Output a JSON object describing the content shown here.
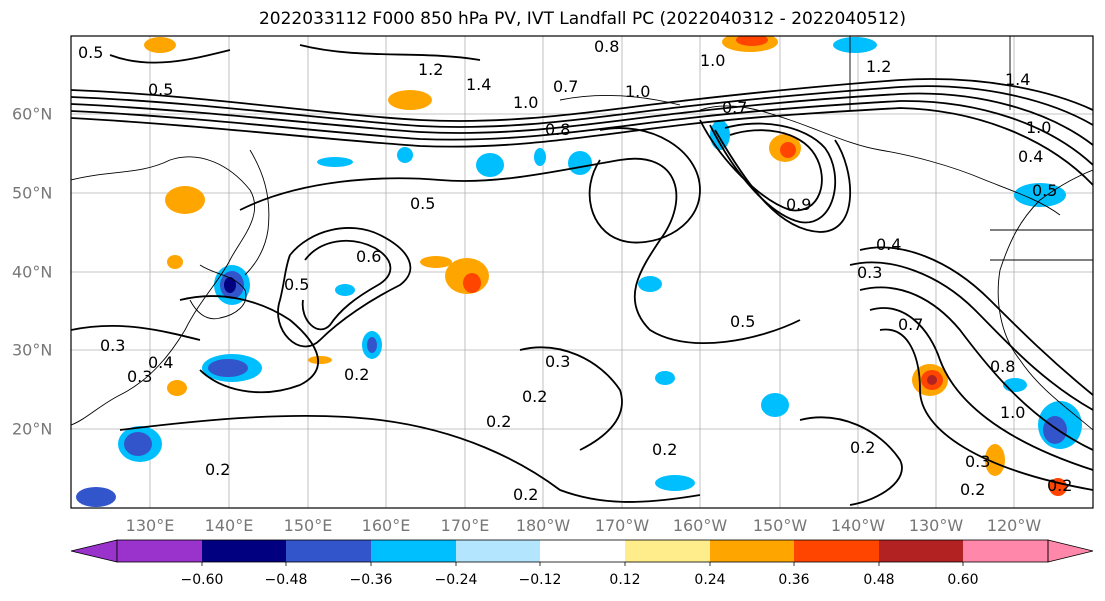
{
  "title": "2022033112 F000 850 hPa PV, IVT Landfall PC (2022040312 - 2022040512)",
  "map": {
    "lon_labels": [
      "130°E",
      "140°E",
      "150°E",
      "160°E",
      "170°E",
      "180°W",
      "170°W",
      "160°W",
      "150°W",
      "140°W",
      "130°W",
      "120°W"
    ],
    "lat_labels": [
      "60°N",
      "50°N",
      "40°N",
      "30°N",
      "20°N"
    ],
    "contour_labels": [
      "0.5",
      "0.5",
      "1.2",
      "1.4",
      "1.0",
      "0.7",
      "0.8",
      "1.0",
      "1.0",
      "1.2",
      "1.4",
      "1.0",
      "0.4",
      "0.5",
      "0.5",
      "0.6",
      "0.5",
      "0.9",
      "0.4",
      "0.3",
      "0.5",
      "0.7",
      "0.3",
      "0.2",
      "0.2",
      "0.3",
      "0.4",
      "0.2",
      "0.2",
      "0.2",
      "0.2",
      "0.2",
      "0.8",
      "1.0",
      "0.3",
      "0.2",
      "0.2",
      "0.7",
      "0.3",
      "0.8"
    ],
    "contour_color": "#000000",
    "grid_color": "#b0b0b0",
    "coast_color": "#000000"
  },
  "colorbar": {
    "colors": [
      "#9933cc",
      "#000080",
      "#3355cc",
      "#00bfff",
      "#b3e5ff",
      "#ffffff",
      "#ffec8b",
      "#ffa500",
      "#ff4500",
      "#b22222",
      "#ff88aa"
    ],
    "tick_labels": [
      "−0.60",
      "−0.48",
      "−0.36",
      "−0.24",
      "−0.12",
      "0.12",
      "0.24",
      "0.36",
      "0.48",
      "0.60"
    ]
  }
}
